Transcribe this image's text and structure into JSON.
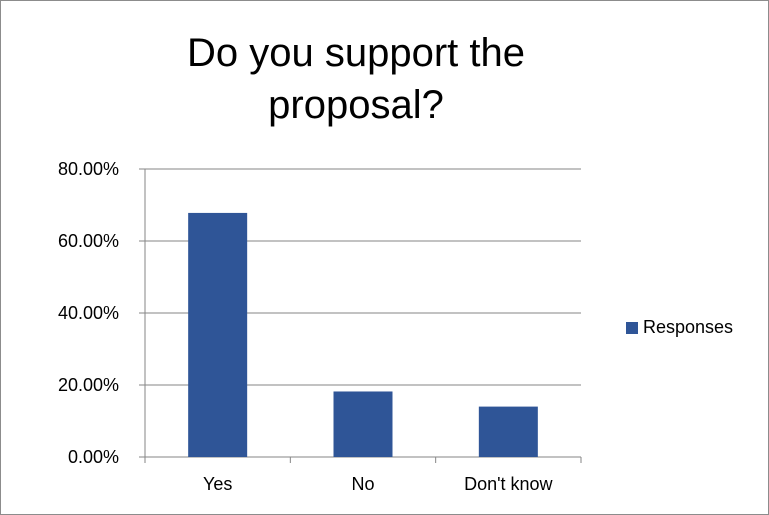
{
  "chart_data": {
    "type": "bar",
    "title": "Do you support the proposal?",
    "categories": [
      "Yes",
      "No",
      "Don't know"
    ],
    "series": [
      {
        "name": "Responses",
        "values": [
          0.678,
          0.182,
          0.14
        ],
        "color": "#2f5597"
      }
    ],
    "ylim": [
      0,
      0.8
    ],
    "yticks": [
      0,
      0.2,
      0.4,
      0.6,
      0.8
    ],
    "ytick_labels": [
      "0.00%",
      "20.00%",
      "40.00%",
      "60.00%",
      "80.00%"
    ],
    "grid": true,
    "legend_position": "right"
  }
}
